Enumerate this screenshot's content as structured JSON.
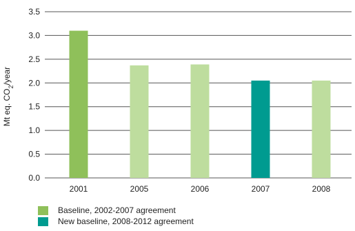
{
  "chart_data": {
    "type": "bar",
    "categories": [
      "2001",
      "2005",
      "2006",
      "2007",
      "2008"
    ],
    "values": [
      3.1,
      2.37,
      2.39,
      2.05,
      2.05
    ],
    "bar_colors": [
      "#8fc05a",
      "#bedd9e",
      "#bedd9e",
      "#009b90",
      "#bedd9e"
    ],
    "ylabel_parts": [
      "Mt eq. CO",
      "2",
      "/year"
    ],
    "ylim": [
      0,
      3.5
    ],
    "yticks": [
      "0.0",
      "0.5",
      "1.0",
      "1.5",
      "2.0",
      "2.5",
      "3.0",
      "3.5"
    ],
    "ytick_values": [
      0,
      0.5,
      1.0,
      1.5,
      2.0,
      2.5,
      3.0,
      3.5
    ],
    "grid": true,
    "legend_position": "bottom-left",
    "legend": [
      {
        "label": "Baseline, 2002-2007 agreement",
        "color": "#8fc05a"
      },
      {
        "label": "New baseline, 2008-2012 agreement",
        "color": "#009b90"
      }
    ]
  }
}
